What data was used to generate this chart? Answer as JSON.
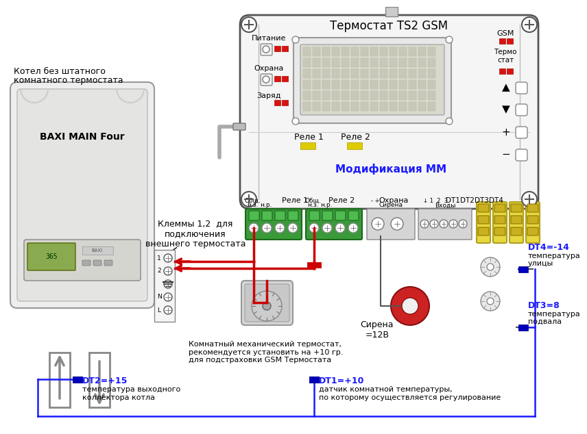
{
  "bg_color": "#ffffff",
  "title": "Термостат TS2 GSM",
  "modificacia": "Модификация ММ",
  "boiler_label": "BAXI MAIN Four",
  "boiler_text1": "Котел без штатного",
  "boiler_text2": "комнатного термостата",
  "klemmy_text": "Клеммы 1,2  для\nподключения\nвнешнего термостата",
  "thermostat_text": "Комнатный механический термостат,\nрекомендуется установить на +10 гр.\nдля подстраховки GSM Термостата",
  "siren_text": "Сирена\n=12В",
  "dt1_label": "DT1=+10",
  "dt1_text1": "датчик комнатной температуры,",
  "dt1_text2": "по которому осуществляется регулирование",
  "dt2_label": "DT2=+15",
  "dt2_text1": "температура выходного",
  "dt2_text2": "коллектора котла",
  "dt3_label": "DT3=8",
  "dt3_text1": "температура",
  "dt3_text2": "подвала",
  "dt4_label": "DT4=-14",
  "dt4_text1": "температура",
  "dt4_text2": "улицы",
  "relay1_label": "Реле 1",
  "relay2_label": "Реле 2",
  "okhrana_label": "Охрана",
  "pitanie_label": "Питание",
  "zaryad_label": "Заряд",
  "gsm_label": "GSM",
  "termo_label": "Термо\nстат",
  "relay_bottom_left": "Реле 1",
  "relay_bottom_right": "Реле 2",
  "dt_labels_bottom": [
    "DT1",
    "DT2",
    "DT3",
    "DT4"
  ],
  "obsh1": "Общ.",
  "nz1": "н.з.",
  "nr1": "н.р.",
  "obsh2": "Общ.",
  "nz2": "н.з.",
  "nr2": "н.р.",
  "sirena_lbl": "Сирена",
  "vhody_lbl": "Входы",
  "color_blue_label": "#0000cc",
  "color_red": "#cc0000",
  "color_label_blue": "#1a1aff",
  "color_terminal_green": "#3a9a3a",
  "color_terminal_yellow": "#d4c020"
}
